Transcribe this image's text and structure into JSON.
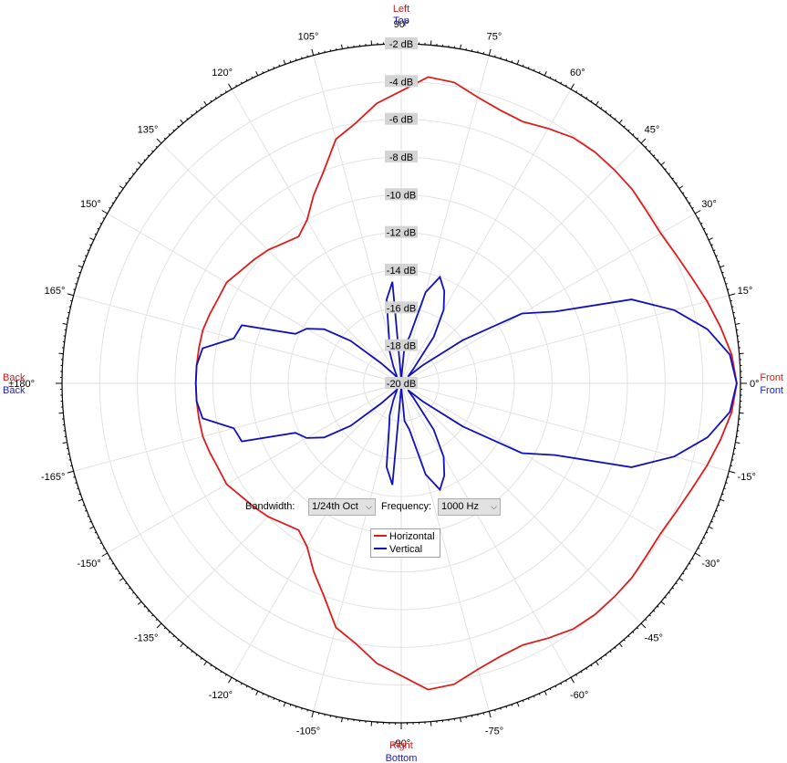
{
  "chart_data": {
    "type": "polar",
    "radial_unit": "dB",
    "radial_range": [
      -20,
      -2
    ],
    "radial_ticks": [
      "-2 dB",
      "-4 dB",
      "-6 dB",
      "-8 dB",
      "-10 dB",
      "-12 dB",
      "-14 dB",
      "-16 dB",
      "-18 dB",
      "-20 dB"
    ],
    "angle_tick_step_deg": 15,
    "angle_labels": [
      {
        "deg": 0,
        "text": "0°"
      },
      {
        "deg": 15,
        "text": "15°"
      },
      {
        "deg": 30,
        "text": "30°"
      },
      {
        "deg": 45,
        "text": "45°"
      },
      {
        "deg": 60,
        "text": "60°"
      },
      {
        "deg": 75,
        "text": "75°"
      },
      {
        "deg": 90,
        "text": "90°"
      },
      {
        "deg": 105,
        "text": "105°"
      },
      {
        "deg": 120,
        "text": "120°"
      },
      {
        "deg": 135,
        "text": "135°"
      },
      {
        "deg": 150,
        "text": "150°"
      },
      {
        "deg": 165,
        "text": "165°"
      },
      {
        "deg": 180,
        "text": "±180°"
      },
      {
        "deg": -165,
        "text": "-165°"
      },
      {
        "deg": -150,
        "text": "-150°"
      },
      {
        "deg": -135,
        "text": "-135°"
      },
      {
        "deg": -120,
        "text": "-120°"
      },
      {
        "deg": -105,
        "text": "-105°"
      },
      {
        "deg": -90,
        "text": "-90°"
      },
      {
        "deg": -75,
        "text": "-75°"
      },
      {
        "deg": -60,
        "text": "-60°"
      },
      {
        "deg": -45,
        "text": "-45°"
      },
      {
        "deg": -30,
        "text": "-30°"
      },
      {
        "deg": -15,
        "text": "-15°"
      }
    ],
    "direction_labels": {
      "top": {
        "red": "Left",
        "blue": "Top"
      },
      "bottom": {
        "red": "Right",
        "blue": "Bottom"
      },
      "left": {
        "red": "Back",
        "blue": "Back"
      },
      "right": {
        "red": "Front",
        "blue": "Front"
      }
    },
    "series": [
      {
        "name": "Horizontal",
        "color": "#dd1c1c",
        "points": [
          [
            0,
            -2.2
          ],
          [
            5,
            -2.4
          ],
          [
            10,
            -2.8
          ],
          [
            15,
            -3.2
          ],
          [
            20,
            -3.6
          ],
          [
            25,
            -3.9
          ],
          [
            30,
            -4.1
          ],
          [
            35,
            -4.1
          ],
          [
            40,
            -4.0
          ],
          [
            45,
            -4.0
          ],
          [
            50,
            -4.0
          ],
          [
            55,
            -4.1
          ],
          [
            60,
            -4.4
          ],
          [
            65,
            -4.7
          ],
          [
            70,
            -4.6
          ],
          [
            75,
            -4.3
          ],
          [
            80,
            -3.8
          ],
          [
            85,
            -3.7
          ],
          [
            90,
            -4.5
          ],
          [
            95,
            -5.1
          ],
          [
            100,
            -6.0
          ],
          [
            105,
            -6.6
          ],
          [
            110,
            -8.0
          ],
          [
            115,
            -9.0
          ],
          [
            120,
            -10.0
          ],
          [
            125,
            -10.5
          ],
          [
            130,
            -10.3
          ],
          [
            135,
            -10.0
          ],
          [
            140,
            -9.8
          ],
          [
            145,
            -9.6
          ],
          [
            150,
            -9.3
          ],
          [
            155,
            -9.3
          ],
          [
            160,
            -9.2
          ],
          [
            165,
            -9.1
          ],
          [
            170,
            -9.1
          ],
          [
            175,
            -9.1
          ],
          [
            180,
            -9.1
          ],
          [
            -175,
            -9.1
          ],
          [
            -170,
            -9.1
          ],
          [
            -165,
            -9.1
          ],
          [
            -160,
            -9.2
          ],
          [
            -155,
            -9.3
          ],
          [
            -150,
            -9.3
          ],
          [
            -145,
            -9.6
          ],
          [
            -140,
            -9.8
          ],
          [
            -135,
            -10.0
          ],
          [
            -130,
            -10.3
          ],
          [
            -125,
            -10.5
          ],
          [
            -120,
            -10.0
          ],
          [
            -115,
            -9.0
          ],
          [
            -110,
            -8.0
          ],
          [
            -105,
            -6.6
          ],
          [
            -100,
            -6.0
          ],
          [
            -95,
            -5.1
          ],
          [
            -90,
            -4.5
          ],
          [
            -85,
            -3.7
          ],
          [
            -80,
            -3.8
          ],
          [
            -75,
            -4.3
          ],
          [
            -70,
            -4.6
          ],
          [
            -65,
            -4.7
          ],
          [
            -60,
            -4.4
          ],
          [
            -55,
            -4.1
          ],
          [
            -50,
            -4.0
          ],
          [
            -45,
            -4.0
          ],
          [
            -40,
            -4.0
          ],
          [
            -35,
            -4.1
          ],
          [
            -30,
            -4.1
          ],
          [
            -25,
            -3.9
          ],
          [
            -20,
            -3.6
          ],
          [
            -15,
            -3.2
          ],
          [
            -10,
            -2.8
          ],
          [
            -5,
            -2.4
          ]
        ]
      },
      {
        "name": "Vertical",
        "color": "#1010bb",
        "points": [
          [
            0,
            -2.2
          ],
          [
            5,
            -2.5
          ],
          [
            10,
            -3.5
          ],
          [
            15,
            -5.0
          ],
          [
            20,
            -7.0
          ],
          [
            25,
            -11.0
          ],
          [
            30,
            -12.6
          ],
          [
            35,
            -16.0
          ],
          [
            40,
            -18.5
          ],
          [
            45,
            -19.5
          ],
          [
            50,
            -19.0
          ],
          [
            55,
            -17.0
          ],
          [
            60,
            -15.5
          ],
          [
            65,
            -14.6
          ],
          [
            70,
            -14.0
          ],
          [
            75,
            -15.0
          ],
          [
            80,
            -17.5
          ],
          [
            85,
            -18.0
          ],
          [
            90,
            -19.8
          ],
          [
            95,
            -14.6
          ],
          [
            100,
            -15.5
          ],
          [
            105,
            -17.5
          ],
          [
            110,
            -18.2
          ],
          [
            115,
            -19.0
          ],
          [
            120,
            -19.5
          ],
          [
            125,
            -19.6
          ],
          [
            130,
            -19.3
          ],
          [
            135,
            -18.5
          ],
          [
            140,
            -16.5
          ],
          [
            145,
            -15.0
          ],
          [
            150,
            -14.2
          ],
          [
            155,
            -13.8
          ],
          [
            160,
            -11.0
          ],
          [
            165,
            -10.8
          ],
          [
            170,
            -9.3
          ],
          [
            175,
            -9.1
          ],
          [
            180,
            -9.1
          ],
          [
            -175,
            -9.1
          ],
          [
            -170,
            -9.3
          ],
          [
            -165,
            -10.8
          ],
          [
            -160,
            -11.0
          ],
          [
            -155,
            -13.8
          ],
          [
            -150,
            -14.2
          ],
          [
            -145,
            -15.0
          ],
          [
            -140,
            -16.5
          ],
          [
            -135,
            -18.5
          ],
          [
            -130,
            -19.3
          ],
          [
            -125,
            -19.6
          ],
          [
            -120,
            -19.5
          ],
          [
            -115,
            -19.0
          ],
          [
            -110,
            -18.2
          ],
          [
            -105,
            -17.5
          ],
          [
            -100,
            -15.5
          ],
          [
            -95,
            -14.6
          ],
          [
            -90,
            -19.8
          ],
          [
            -85,
            -18.0
          ],
          [
            -80,
            -17.5
          ],
          [
            -75,
            -15.0
          ],
          [
            -70,
            -14.0
          ],
          [
            -65,
            -14.6
          ],
          [
            -60,
            -15.5
          ],
          [
            -55,
            -17.0
          ],
          [
            -50,
            -19.0
          ],
          [
            -45,
            -19.5
          ],
          [
            -40,
            -18.5
          ],
          [
            -35,
            -16.0
          ],
          [
            -30,
            -12.6
          ],
          [
            -25,
            -11.0
          ],
          [
            -20,
            -7.0
          ],
          [
            -15,
            -5.0
          ],
          [
            -10,
            -3.5
          ],
          [
            -5,
            -2.5
          ]
        ]
      }
    ],
    "legend": {
      "placement": "bottom-center",
      "entries": [
        "Horizontal",
        "Vertical"
      ]
    }
  },
  "controls": {
    "bandwidth_label": "Bandwidth:",
    "bandwidth_value": "1/24th Oct",
    "frequency_label": "Frequency:",
    "frequency_value": "1000 Hz"
  },
  "legend": {
    "horizontal_label": "Horizontal",
    "vertical_label": "Vertical",
    "horizontal_color": "#dd1c1c",
    "vertical_color": "#1010bb"
  }
}
